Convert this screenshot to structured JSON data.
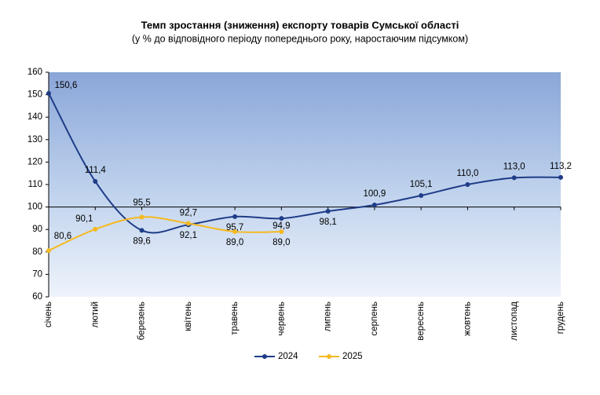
{
  "chart_data": {
    "type": "line",
    "title": "Темп зростання (зниження) експорту товарів Сумської області",
    "subtitle": "(у % до відповідного періоду попереднього року, наростаючим підсумком)",
    "categories": [
      "січень",
      "лютий",
      "березень",
      "квітень",
      "травень",
      "червень",
      "липень",
      "серпень",
      "вересень",
      "жовтень",
      "листопад",
      "грудень"
    ],
    "series": [
      {
        "name": "2024",
        "color": "#1f3c88",
        "values": [
          150.6,
          111.4,
          89.6,
          92.1,
          95.7,
          94.9,
          98.1,
          100.9,
          105.1,
          110.0,
          113.0,
          113.2
        ],
        "value_labels": [
          "150,6",
          "111,4",
          "89,6",
          "92,1",
          "95,7",
          "94,9",
          "98,1",
          "100,9",
          "105,1",
          "110,0",
          "113,0",
          "113,2"
        ]
      },
      {
        "name": "2025",
        "color": "#f5b921",
        "values": [
          80.6,
          90.1,
          95.5,
          92.7,
          89.0,
          89.0,
          null,
          null,
          null,
          null,
          null,
          null
        ],
        "value_labels": [
          "80,6",
          "90,1",
          "95,5",
          "92,7",
          "89,0",
          "89,0",
          null,
          null,
          null,
          null,
          null,
          null
        ]
      }
    ],
    "ylim": [
      60,
      160
    ],
    "yticks": [
      60,
      70,
      80,
      90,
      100,
      110,
      120,
      130,
      140,
      150,
      160
    ],
    "x_axis_crosses": 100,
    "legend": "bottom"
  }
}
